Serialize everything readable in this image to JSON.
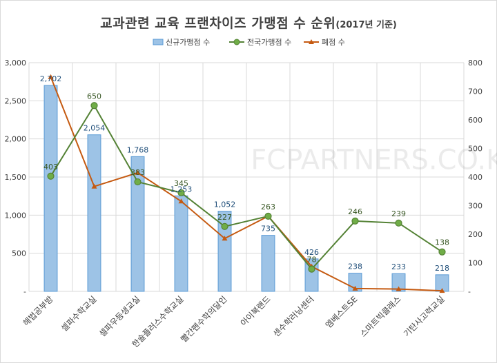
{
  "title_main": "교과관련 교육 프랜차이즈 가맹점 수 순위",
  "title_sub": "(2017년 기준)",
  "watermark": "FCPARTNERS.CO.KR",
  "colors": {
    "bar_fill": "#9dc3e6",
    "bar_stroke": "#5b9bd5",
    "total_line": "#548235",
    "total_marker": "#70ad47",
    "closed_line": "#c55a11",
    "closed_marker": "#c55a11",
    "grid": "#d9d9d9"
  },
  "chart_data": {
    "type": "bar",
    "title": "교과관련 교육 프랜차이즈 가맹점 수 순위(2017년 기준)",
    "categories": [
      "해법공부방",
      "셀파수학교실",
      "셀파우등생교실",
      "한솔플러스수학교실",
      "빨간펜수학의달인",
      "아이북랜드",
      "센수학러닝센터",
      "엠베스트SE",
      "스마트빅클래스",
      "기탄사고력교실"
    ],
    "series": [
      {
        "name": "신규가맹점 수",
        "kind": "bar",
        "axis": "left",
        "values": [
          2702,
          2054,
          1768,
          1253,
          1052,
          735,
          426,
          238,
          233,
          218
        ],
        "labels": [
          "2,702",
          "2,054",
          "1,768",
          "1,253",
          "1,052",
          "735",
          "426",
          "238",
          "233",
          "218"
        ]
      },
      {
        "name": "전국가맹점 수",
        "kind": "line",
        "axis": "right",
        "marker": "circle",
        "values": [
          403,
          650,
          383,
          345,
          227,
          263,
          78,
          246,
          239,
          138
        ]
      },
      {
        "name": "폐점 수",
        "kind": "line",
        "axis": "right",
        "marker": "triangle",
        "values": [
          750,
          367,
          415,
          315,
          185,
          263,
          87,
          10,
          8,
          2
        ]
      }
    ],
    "y_left": {
      "min": 0,
      "max": 3000,
      "ticks": [
        0,
        500,
        1000,
        1500,
        2000,
        2500,
        3000
      ],
      "tick_labels": [
        "-",
        "500",
        "1,000",
        "1,500",
        "2,000",
        "2,500",
        "3,000"
      ]
    },
    "y_right": {
      "min": 0,
      "max": 800,
      "ticks": [
        0,
        100,
        200,
        300,
        400,
        500,
        600,
        700,
        800
      ],
      "tick_labels": [
        "-",
        "100",
        "200",
        "300",
        "400",
        "500",
        "600",
        "700",
        "800"
      ]
    },
    "grid": true,
    "legend": "top"
  }
}
